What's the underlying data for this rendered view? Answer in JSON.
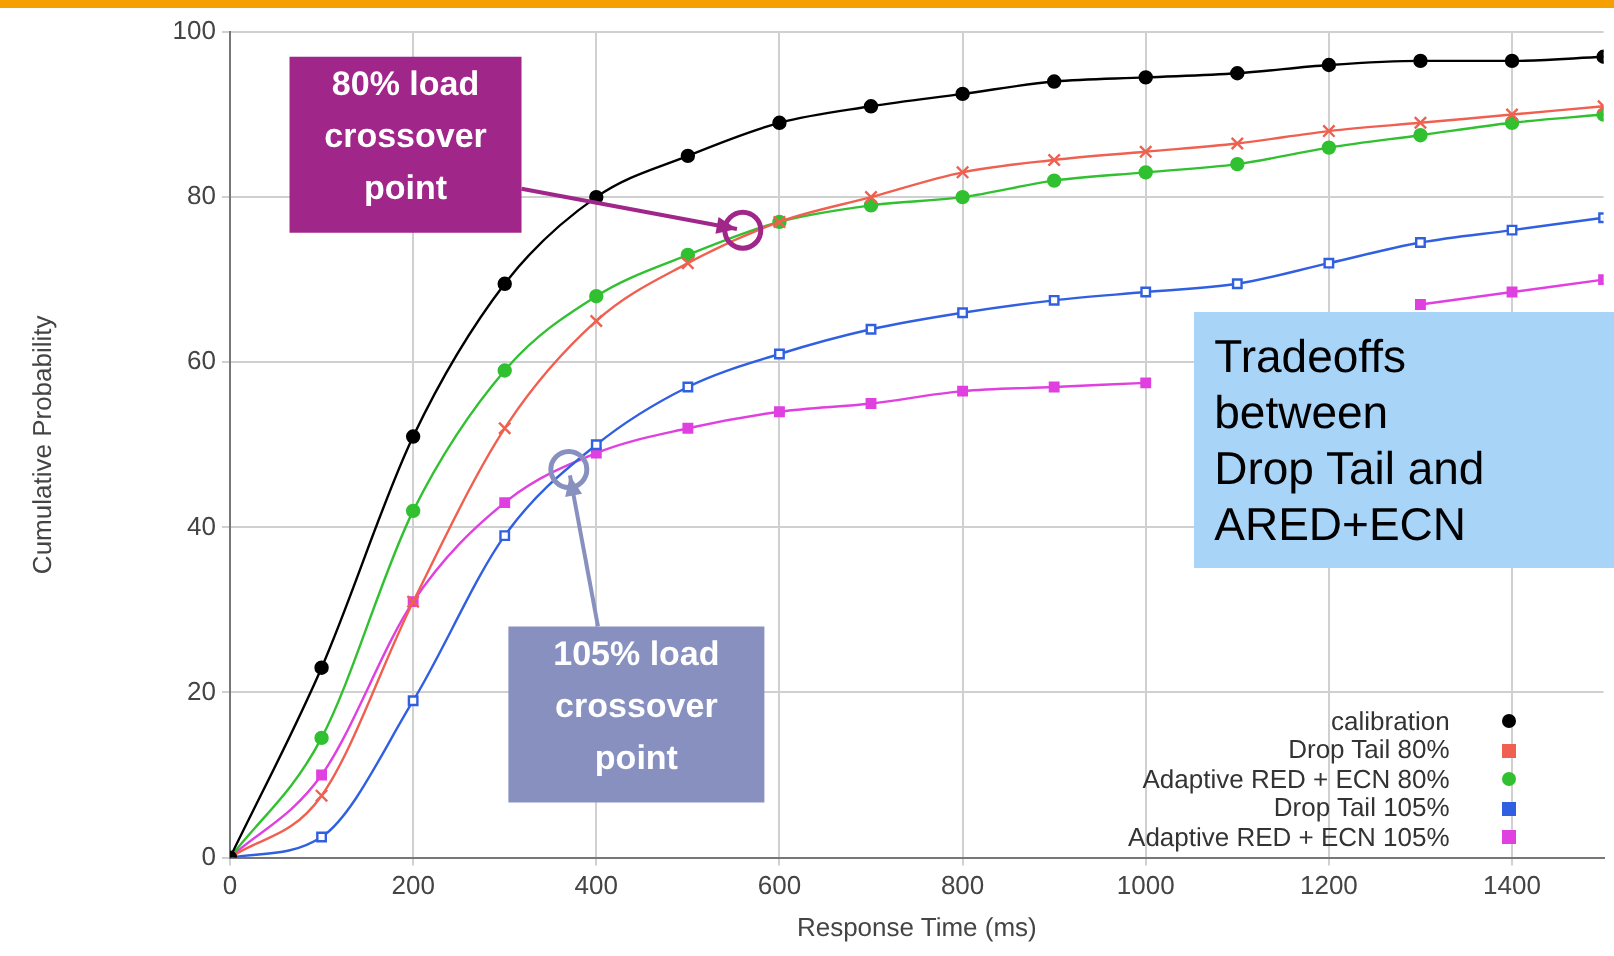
{
  "chart_data": {
    "type": "line",
    "xlabel": "Response Time (ms)",
    "ylabel": "Cumulative Probability",
    "x": [
      0,
      100,
      200,
      300,
      400,
      500,
      600,
      700,
      800,
      900,
      1000,
      1100,
      1200,
      1300,
      1400,
      1500
    ],
    "series": [
      {
        "name": "calibration",
        "color": "#000000",
        "marker": "circle",
        "values": [
          0,
          23,
          51,
          69.5,
          80,
          85,
          89,
          91,
          92.5,
          94,
          94.5,
          95,
          96,
          96.5,
          96.5,
          97
        ]
      },
      {
        "name": "Drop Tail 80%",
        "color": "#f06050",
        "marker": "cross",
        "values": [
          0,
          7.5,
          31,
          52,
          65,
          72,
          77,
          80,
          83,
          84.5,
          85.5,
          86.5,
          88,
          89,
          90,
          91
        ]
      },
      {
        "name": "Adaptive RED + ECN 80%",
        "color": "#30c030",
        "marker": "circle",
        "values": [
          0,
          14.5,
          42,
          59,
          68,
          73,
          77,
          79,
          80,
          82,
          83,
          84,
          86,
          87.5,
          89,
          90
        ]
      },
      {
        "name": "Drop Tail 105%",
        "color": "#3060e0",
        "marker": "square",
        "values": [
          0,
          2.5,
          19,
          39,
          50,
          57,
          61,
          64,
          66,
          67.5,
          68.5,
          69.5,
          72,
          74.5,
          76,
          77.5
        ]
      },
      {
        "name": "Adaptive RED + ECN 105%",
        "color": "#e040e0",
        "marker": "square",
        "values": [
          0,
          10,
          31,
          43,
          49,
          52,
          54,
          55,
          56.5,
          57,
          57.5,
          null,
          null,
          67,
          68.5,
          70
        ]
      }
    ],
    "xlim": [
      0,
      1500
    ],
    "xticks": [
      0,
      200,
      400,
      600,
      800,
      1000,
      1200,
      1400
    ],
    "ylim": [
      0,
      100
    ],
    "yticks": [
      0,
      20,
      40,
      60,
      80,
      100
    ],
    "grid": true,
    "legend": "bottom right",
    "line_style": "solid",
    "annotations": [
      {
        "text": "80% load crossover point",
        "x": 560,
        "y": 76
      },
      {
        "text": "105% load crossover point",
        "x": 370,
        "y": 47
      },
      "Tradeoffs between Drop Tail and ARED+ECN"
    ]
  }
}
